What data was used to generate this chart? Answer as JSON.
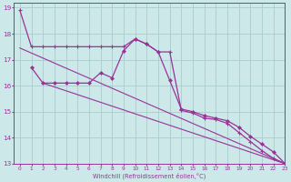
{
  "background_color": "#cce8e8",
  "grid_color": "#aacccc",
  "line_color": "#993399",
  "xlim": [
    -0.5,
    23
  ],
  "ylim": [
    13,
    19.2
  ],
  "xlabel": "Windchill (Refroidissement éolien,°C)",
  "yticks": [
    13,
    14,
    15,
    16,
    17,
    18,
    19
  ],
  "xticks": [
    0,
    1,
    2,
    3,
    4,
    5,
    6,
    7,
    8,
    9,
    10,
    11,
    12,
    13,
    14,
    15,
    16,
    17,
    18,
    19,
    20,
    21,
    22,
    23
  ],
  "series1_x": [
    0,
    1,
    2,
    3,
    4,
    5,
    6,
    7,
    8,
    9,
    10,
    11,
    12,
    13,
    14,
    15,
    16,
    17,
    18,
    19,
    20,
    21,
    22,
    23
  ],
  "series1": [
    18.9,
    17.5,
    17.5,
    17.5,
    17.5,
    17.5,
    17.5,
    17.5,
    17.5,
    17.5,
    17.8,
    17.6,
    17.3,
    17.3,
    15.05,
    14.95,
    14.75,
    14.7,
    14.55,
    14.2,
    13.85,
    13.5,
    13.2,
    13.0
  ],
  "series2_x": [
    1,
    2,
    3,
    4,
    5,
    6,
    7,
    8,
    9,
    10,
    11,
    12,
    13,
    14,
    15,
    16,
    17,
    18,
    19,
    20,
    21,
    22,
    23
  ],
  "series2": [
    16.7,
    16.1,
    16.1,
    16.1,
    16.1,
    16.1,
    16.5,
    16.3,
    17.35,
    17.8,
    17.6,
    17.3,
    16.2,
    15.1,
    15.0,
    14.85,
    14.75,
    14.65,
    14.4,
    14.05,
    13.75,
    13.45,
    13.0
  ],
  "trend_x": [
    0,
    23
  ],
  "trend_y": [
    17.45,
    13.0
  ],
  "trend2_x": [
    2,
    23
  ],
  "trend2_y": [
    16.1,
    13.0
  ]
}
